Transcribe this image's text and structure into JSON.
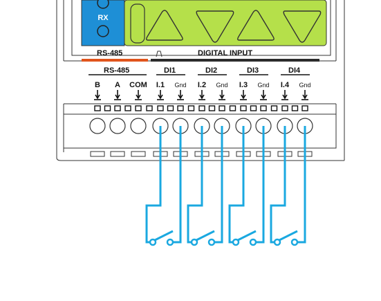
{
  "colors": {
    "lcd_green": "#b5e04a",
    "blue_panel": "#1e8fd6",
    "wire": "#1aa8e0",
    "rs485_strip": "#e0541c",
    "digital_strip": "#2b2b2b",
    "outline": "#333333"
  },
  "led_panel": {
    "rx_label": "RX"
  },
  "strip": {
    "rs485": "RS-485",
    "digital_input": "DIGITAL INPUT"
  },
  "groups": [
    {
      "title": "RS-485",
      "pins": [
        "B",
        "A",
        "COM"
      ]
    },
    {
      "title": "DI1",
      "pins": [
        "I.1",
        "Gnd"
      ]
    },
    {
      "title": "DI2",
      "pins": [
        "I.2",
        "Gnd"
      ]
    },
    {
      "title": "DI3",
      "pins": [
        "I.3",
        "Gnd"
      ]
    },
    {
      "title": "DI4",
      "pins": [
        "I.4",
        "Gnd"
      ]
    }
  ],
  "buttons": [
    "arrow-left-button",
    "arrow-down-button",
    "arrow-up-button",
    "arrow-right-button"
  ],
  "switch_count": 4
}
